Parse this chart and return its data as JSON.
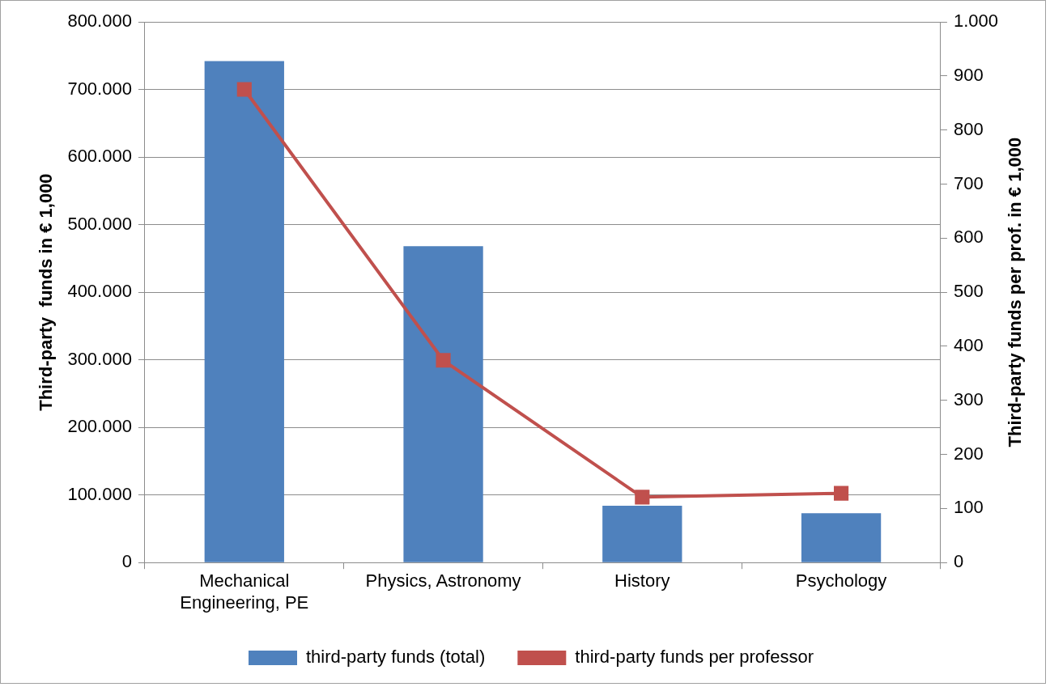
{
  "chart_data": {
    "type": "bar",
    "categories": [
      "Mechanical Engineering, PE",
      "Physics, Astronomy",
      "History",
      "Psychology"
    ],
    "series": [
      {
        "name": "third-party funds (total)",
        "color": "#4f81bd",
        "values": [
          742000,
          468000,
          84000,
          73000
        ]
      },
      {
        "name": "third-party funds per professor",
        "type": "line",
        "axis": "y2",
        "color": "#c0504d",
        "values": [
          875,
          374,
          121,
          128
        ],
        "marker": "square"
      }
    ],
    "ylabel": "Third-party  funds in € 1,000",
    "y2label": "Third-party funds per prof. in € 1,000",
    "ylim": [
      0,
      800000
    ],
    "yticks": [
      {
        "value": 0,
        "label": "0"
      },
      {
        "value": 100000,
        "label": "100.000"
      },
      {
        "value": 200000,
        "label": "200.000"
      },
      {
        "value": 300000,
        "label": "300.000"
      },
      {
        "value": 400000,
        "label": "400.000"
      },
      {
        "value": 500000,
        "label": "500.000"
      },
      {
        "value": 600000,
        "label": "600.000"
      },
      {
        "value": 700000,
        "label": "700.000"
      },
      {
        "value": 800000,
        "label": "800.000"
      }
    ],
    "y2lim": [
      0,
      1000
    ],
    "y2ticks": [
      0,
      100,
      200,
      300,
      400,
      500,
      600,
      700,
      800,
      900,
      {
        "value": 1000,
        "label": "1.000"
      }
    ],
    "grid": "y",
    "legend": "bottom",
    "line_style": "solid"
  }
}
